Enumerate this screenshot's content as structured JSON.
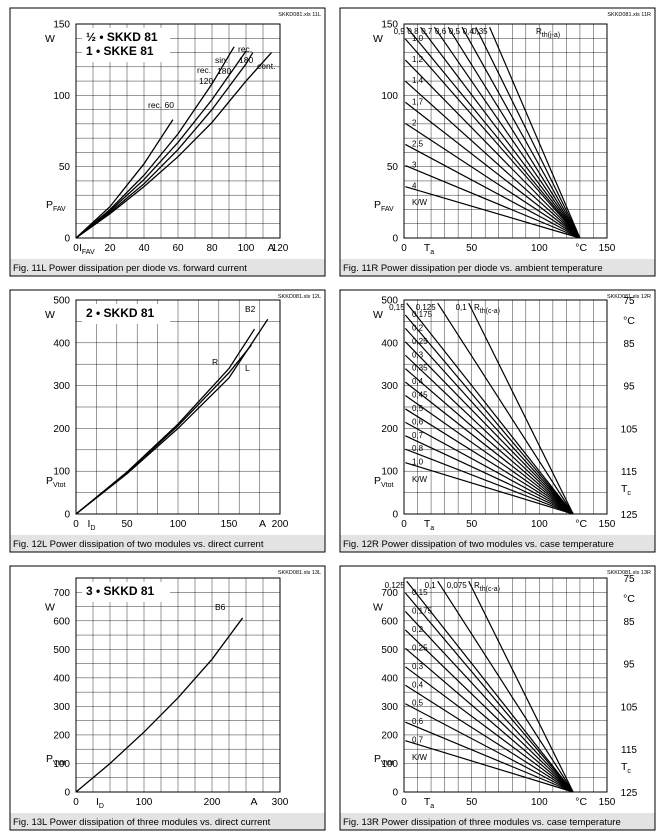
{
  "panels": [
    {
      "id": "11L",
      "ref": "SKKD081.xls 11L",
      "caption": "Fig. 11L Power dissipation per diode vs. forward current",
      "title_lines": [
        "½ • SKKD 81",
        "1 • SKKE 81"
      ],
      "ylabel": "P",
      "ylabel_sub": "FAV",
      "yunit": "W",
      "xlabel": "I",
      "xlabel_sub": "FAV",
      "xunit": "A",
      "x_ticks": [
        "0",
        "20",
        "40",
        "60",
        "80",
        "100",
        "120"
      ],
      "y_ticks": [
        "0",
        "50",
        "100",
        "150"
      ],
      "chart_data": {
        "type": "line",
        "xlim": [
          0,
          120
        ],
        "ylim": [
          0,
          150
        ],
        "series": [
          {
            "name": "rec. 60",
            "x": [
              0,
              20,
              40,
              57
            ],
            "y": [
              0,
              22,
              52,
              83
            ]
          },
          {
            "name": "rec. 120",
            "x": [
              0,
              20,
              40,
              60,
              80,
              93
            ],
            "y": [
              0,
              20,
              44,
              73,
              108,
              134
            ]
          },
          {
            "name": "sin. 180",
            "x": [
              0,
              20,
              40,
              60,
              80,
              100
            ],
            "y": [
              0,
              19,
              41,
              67,
              97,
              131
            ]
          },
          {
            "name": "rec. 180",
            "x": [
              0,
              20,
              40,
              60,
              80,
              100,
              104
            ],
            "y": [
              0,
              18,
              38,
              62,
              90,
              122,
              130
            ]
          },
          {
            "name": "cont.",
            "x": [
              0,
              20,
              40,
              60,
              80,
              100,
              115
            ],
            "y": [
              0,
              17,
              36,
              57,
              81,
              110,
              130
            ]
          }
        ]
      },
      "curve_labels": [
        "rec. 60",
        "rec.",
        "120",
        "sin.",
        "180",
        "rec.",
        "180",
        "cont."
      ]
    },
    {
      "id": "11R",
      "ref": "SKKD081.xls 11R",
      "caption": "Fig. 11R Power dissipation per diode vs. ambient temperature",
      "ylabel": "P",
      "ylabel_sub": "FAV",
      "yunit": "W",
      "xlabel": "T",
      "xlabel_sub": "a",
      "xunit": "°C",
      "x_ticks": [
        "0",
        "50",
        "100",
        "150"
      ],
      "y_ticks": [
        "0",
        "50",
        "100",
        "150"
      ],
      "rth_label": "R",
      "rth_sub": "th(j-a)",
      "rth_unit": "K/W",
      "chart_data": {
        "type": "line",
        "description_free": true,
        "xlim": [
          0,
          150
        ],
        "ylim": [
          0,
          150
        ],
        "converge_x": 130,
        "rth": [
          "0,35",
          "0,4",
          "0,5",
          "0,6",
          "0,7",
          "0,8",
          "0,9",
          "1,0",
          "1,2",
          "1,4",
          "1,7",
          "2",
          "2,5",
          "3",
          "4"
        ]
      }
    },
    {
      "id": "12L",
      "ref": "SKKD081.xls 12L",
      "caption": "Fig. 12L Power dissipation of two modules vs. direct current",
      "title_lines": [
        "2 • SKKD 81"
      ],
      "ylabel": "P",
      "ylabel_sub": "Vtot",
      "yunit": "W",
      "xlabel": "I",
      "xlabel_sub": "D",
      "xunit": "A",
      "x_ticks": [
        "0",
        "50",
        "100",
        "150",
        "200"
      ],
      "y_ticks": [
        "0",
        "100",
        "200",
        "300",
        "400",
        "500"
      ],
      "chart_data": {
        "type": "line",
        "xlim": [
          0,
          200
        ],
        "ylim": [
          0,
          500
        ],
        "series": [
          {
            "name": "B2",
            "x": [
              0,
              50,
              100,
              150,
              175
            ],
            "y": [
              0,
              98,
              210,
              340,
              432
            ]
          },
          {
            "name": "R",
            "x": [
              0,
              50,
              100,
              150,
              172
            ],
            "y": [
              0,
              96,
              206,
              330,
              395
            ]
          },
          {
            "name": "L",
            "x": [
              0,
              50,
              100,
              150,
              188
            ],
            "y": [
              0,
              94,
              200,
              318,
              455
            ]
          }
        ]
      },
      "curve_labels": [
        "B2",
        "R",
        "L"
      ]
    },
    {
      "id": "12R",
      "ref": "SKKD081.xls 12R",
      "caption": "Fig. 12R Power dissipation of two modules vs. case temperature",
      "ylabel": "P",
      "ylabel_sub": "Vtot",
      "yunit": "W",
      "xlabel": "T",
      "xlabel_sub": "a",
      "xunit": "°C",
      "x_ticks": [
        "0",
        "50",
        "100",
        "150"
      ],
      "y_ticks": [
        "0",
        "100",
        "200",
        "300",
        "400",
        "500"
      ],
      "y2_ticks": [
        "75",
        "85",
        "95",
        "105",
        "115",
        "125"
      ],
      "y2unit": "°C",
      "y2label": "T",
      "y2label_sub": "c",
      "rth_label": "R",
      "rth_sub": "th(c-a)",
      "rth_unit": "K/W",
      "chart_data": {
        "type": "line",
        "xlim": [
          0,
          150
        ],
        "ylim": [
          0,
          500
        ],
        "converge_x": 125,
        "rth": [
          "0,1",
          "0,125",
          "0,15",
          "0,175",
          "0,2",
          "0,25",
          "0,3",
          "0,35",
          "0,4",
          "0,45",
          "0,5",
          "0,6",
          "0,7",
          "0,8",
          "1,0"
        ]
      }
    },
    {
      "id": "13L",
      "ref": "SKKD081.xls 13L",
      "caption": "Fig. 13L Power dissipation of three modules vs. direct current",
      "title_lines": [
        "3 • SKKD 81"
      ],
      "ylabel": "P",
      "ylabel_sub": "Vtot",
      "yunit": "W",
      "xlabel": "I",
      "xlabel_sub": "D",
      "xunit": "A",
      "x_ticks": [
        "0",
        "100",
        "200",
        "300"
      ],
      "y_ticks": [
        "0",
        "100",
        "200",
        "300",
        "400",
        "500",
        "600",
        "700"
      ],
      "chart_data": {
        "type": "line",
        "xlim": [
          0,
          300
        ],
        "ylim": [
          0,
          750
        ],
        "series": [
          {
            "name": "B6",
            "x": [
              0,
              50,
              100,
              150,
              200,
              245
            ],
            "y": [
              0,
              100,
              210,
              330,
              465,
              610
            ]
          }
        ]
      },
      "curve_labels": [
        "B6"
      ]
    },
    {
      "id": "13R",
      "ref": "SKKD081.xls 13R",
      "caption": "Fig. 13R Power dissipation of three modules vs. case temperature",
      "ylabel": "P",
      "ylabel_sub": "Vtot",
      "yunit": "W",
      "xlabel": "T",
      "xlabel_sub": "a",
      "xunit": "°C",
      "x_ticks": [
        "0",
        "50",
        "100",
        "150"
      ],
      "y_ticks": [
        "0",
        "100",
        "200",
        "300",
        "400",
        "500",
        "600",
        "700"
      ],
      "y2_ticks": [
        "75",
        "85",
        "95",
        "105",
        "115",
        "125"
      ],
      "y2unit": "°C",
      "y2label": "T",
      "y2label_sub": "c",
      "rth_label": "R",
      "rth_sub": "th(c-a)",
      "rth_unit": "K/W",
      "chart_data": {
        "type": "line",
        "xlim": [
          0,
          150
        ],
        "ylim": [
          0,
          750
        ],
        "converge_x": 125,
        "rth": [
          "0,075",
          "0,1",
          "0,125",
          "0,15",
          "0,175",
          "0,2",
          "0,25",
          "0,3",
          "0,4",
          "0,5",
          "0,6",
          "0,7"
        ]
      }
    }
  ]
}
